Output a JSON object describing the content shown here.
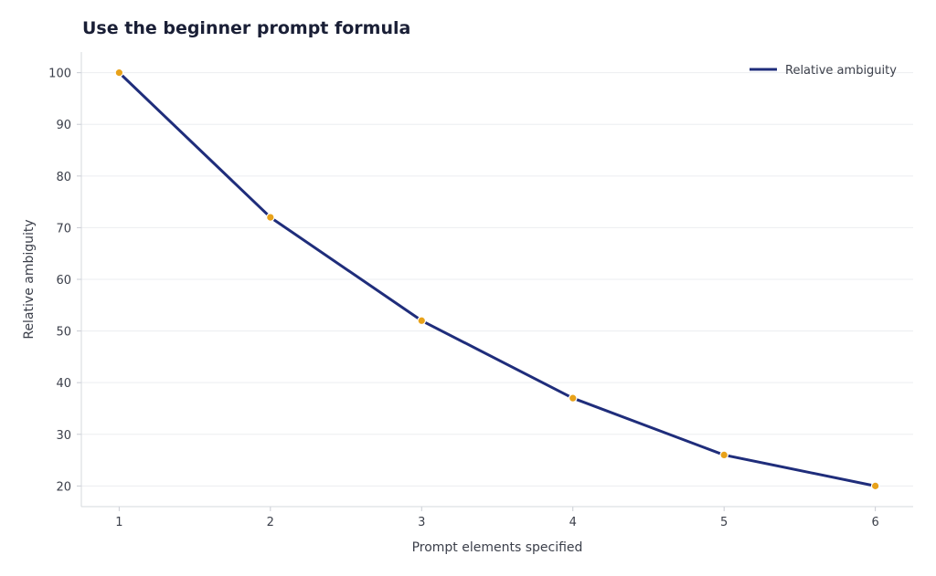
{
  "chart_data": {
    "type": "line",
    "title": "Use the beginner prompt formula",
    "xlabel": "Prompt elements specified",
    "ylabel": "Relative ambiguity",
    "x": [
      1,
      2,
      3,
      4,
      5,
      6
    ],
    "series": [
      {
        "name": "Relative ambiguity",
        "values": [
          100,
          72,
          52,
          37,
          26,
          20
        ],
        "color": "#1f2d7b",
        "marker_color": "#e8a21a"
      }
    ],
    "xticks": [
      "1",
      "2",
      "3",
      "4",
      "5",
      "6"
    ],
    "yticks": [
      "20",
      "30",
      "40",
      "50",
      "60",
      "70",
      "80",
      "90",
      "100"
    ],
    "xlim": [
      0.75,
      6.25
    ],
    "ylim": [
      16,
      104
    ],
    "grid": true,
    "legend_position": "top-right"
  }
}
